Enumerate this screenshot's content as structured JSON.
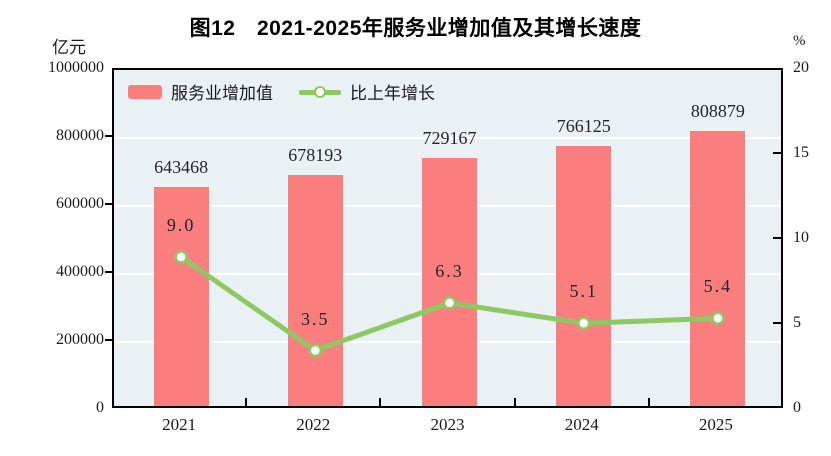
{
  "figure": {
    "title": "图12　2021-2025年服务业增加值及其增长速度",
    "left_unit": "亿元",
    "right_unit": "%"
  },
  "legend": {
    "bar_label": "服务业增加值",
    "line_label": "比上年增长"
  },
  "colors": {
    "bar": "#fb7e7e",
    "line": "#8dc863",
    "marker_fill": "#ffffff",
    "plot_bg": "#eaf1f4",
    "grid": "#ffffff",
    "axis": "#000000",
    "text": "#252525"
  },
  "chart_data": {
    "type": "combo",
    "title": "图12　2021-2025年服务业增加值及其增长速度",
    "categories": [
      "2021",
      "2022",
      "2023",
      "2024",
      "2025"
    ],
    "series": [
      {
        "name": "服务业增加值",
        "type": "bar",
        "axis": "left",
        "values": [
          643468,
          678193,
          729167,
          766125,
          808879
        ],
        "labels": [
          "643468",
          "678193",
          "729167",
          "766125",
          "808879"
        ]
      },
      {
        "name": "比上年增长",
        "type": "line",
        "axis": "right",
        "values": [
          9.0,
          3.5,
          6.3,
          5.1,
          5.4
        ],
        "labels": [
          "9.0",
          "3.5",
          "6.3",
          "5.1",
          "5.4"
        ]
      }
    ],
    "left_axis": {
      "label": "亿元",
      "min": 0,
      "max": 1000000,
      "ticks": [
        1000000,
        800000,
        600000,
        400000,
        200000,
        0
      ]
    },
    "right_axis": {
      "label": "%",
      "min": 0,
      "max": 20,
      "ticks": [
        20,
        15,
        10,
        5,
        0
      ]
    },
    "grid": true,
    "legend_position": "top-left-inside"
  }
}
